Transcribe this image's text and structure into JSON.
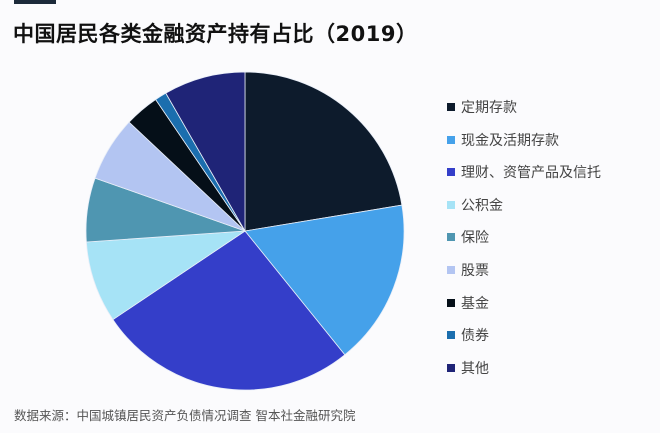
{
  "chart_data": {
    "type": "pie",
    "title": "中国居民各类金融资产持有占比（2019）",
    "start_angle": "12 o'clock",
    "direction": "clockwise",
    "legend_position": "right",
    "slices": [
      {
        "label": "定期存款",
        "value": 22.4,
        "color": "#0d1b2c"
      },
      {
        "label": "现金及活期存款",
        "value": 16.8,
        "color": "#45a1ea"
      },
      {
        "label": "理财、资管产品及信托",
        "value": 26.4,
        "color": "#343ec9"
      },
      {
        "label": "公积金",
        "value": 8.3,
        "color": "#a6e3f6"
      },
      {
        "label": "保险",
        "value": 6.5,
        "color": "#4f96b1"
      },
      {
        "label": "股票",
        "value": 6.6,
        "color": "#b3c5f2"
      },
      {
        "label": "基金",
        "value": 3.5,
        "color": "#050f18"
      },
      {
        "label": "债券",
        "value": 1.2,
        "color": "#1b6eae"
      },
      {
        "label": "其他",
        "value": 8.3,
        "color": "#1f2477"
      }
    ]
  },
  "source": "数据来源：中国城镇居民资产负债情况调查 智本社金融研究院"
}
